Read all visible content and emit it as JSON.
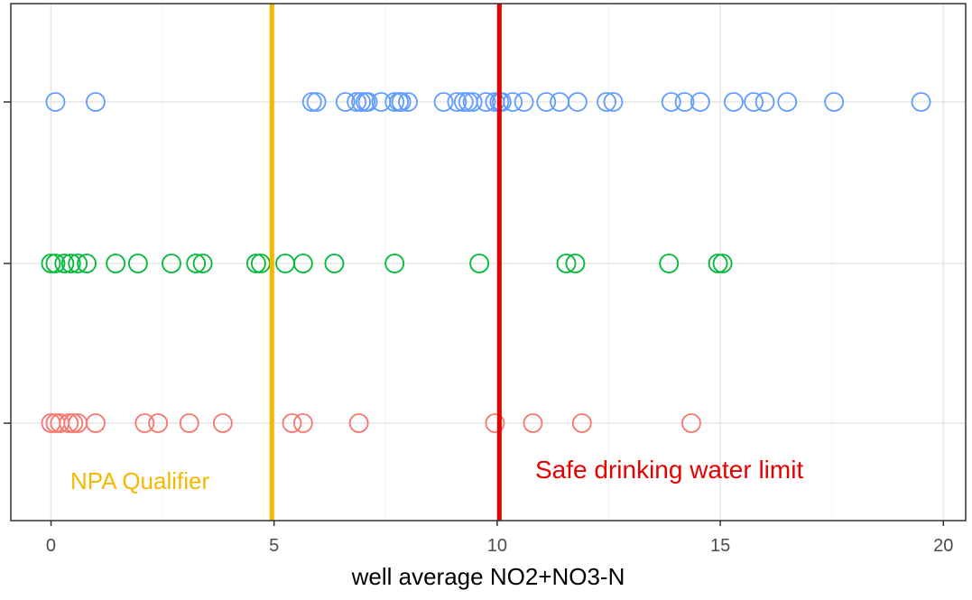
{
  "chart_data": {
    "type": "scatter",
    "title": "",
    "xlabel": "well average NO2+NO3-N",
    "ylabel": "",
    "xlim": [
      -0.9,
      20.5
    ],
    "x_ticks": [
      0,
      5,
      10,
      15,
      20
    ],
    "x_tick_labels": [
      "0",
      "5",
      "10",
      "15",
      "20"
    ],
    "grid": true,
    "legend": "none",
    "marker": "open-circle",
    "series": [
      {
        "row": 3,
        "color": "#619cff",
        "x": [
          0.1,
          1.0,
          5.85,
          5.95,
          6.6,
          6.85,
          6.95,
          7.05,
          7.1,
          7.4,
          7.7,
          7.8,
          7.85,
          8.0,
          8.8,
          9.1,
          9.25,
          9.35,
          9.45,
          9.75,
          9.95,
          10.05,
          10.1,
          10.35,
          10.6,
          11.1,
          11.4,
          11.8,
          12.45,
          12.6,
          13.9,
          14.2,
          14.55,
          15.3,
          15.75,
          16.0,
          16.5,
          17.55,
          19.5
        ]
      },
      {
        "row": 2,
        "color": "#00ba38",
        "x": [
          0.0,
          0.1,
          0.3,
          0.45,
          0.6,
          0.8,
          1.45,
          1.95,
          2.7,
          3.25,
          3.4,
          4.6,
          4.7,
          5.25,
          5.65,
          6.35,
          7.7,
          9.6,
          11.55,
          11.75,
          13.85,
          14.95,
          15.05
        ]
      },
      {
        "row": 1,
        "color": "#f8766d",
        "x": [
          0.0,
          0.1,
          0.2,
          0.4,
          0.5,
          0.6,
          1.0,
          2.1,
          2.4,
          3.1,
          3.85,
          5.4,
          5.65,
          6.9,
          9.95,
          10.8,
          11.9,
          14.35
        ]
      }
    ],
    "reference_lines": [
      {
        "x": 4.95,
        "color": "#f5b800",
        "label": "NPA Qualifier"
      },
      {
        "x": 10.05,
        "color": "#e60000",
        "label": "Safe drinking water limit"
      }
    ]
  }
}
